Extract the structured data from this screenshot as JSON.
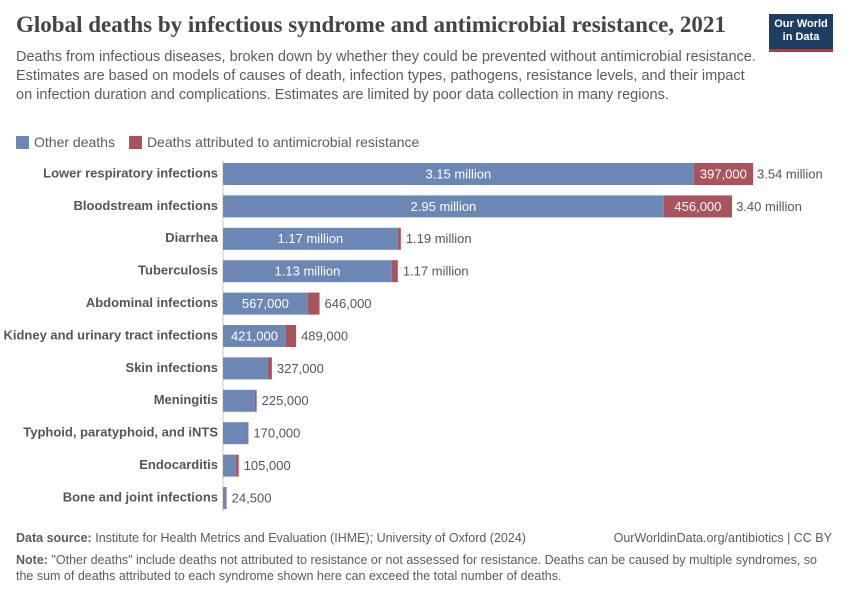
{
  "chart_data": {
    "type": "stacked-bar-horizontal",
    "title": "Global deaths by infectious syndrome and antimicrobial resistance, 2021",
    "subtitle": "Deaths from infectious diseases, broken down by whether they could be prevented without antimicrobial resistance. Estimates are based on models of causes of death, infection types, pathogens, resistance levels, and their impact on infection duration and complications. Estimates are limited by poor data collection in many regions.",
    "logo": [
      "Our World",
      "in Data"
    ],
    "categories": [
      "Lower respiratory infections",
      "Bloodstream infections",
      "Diarrhea",
      "Tuberculosis",
      "Abdominal infections",
      "Kidney and urinary tract infections",
      "Skin infections",
      "Meningitis",
      "Typhoid, paratyphoid, and iNTS",
      "Endocarditis",
      "Bone and joint infections"
    ],
    "series": [
      {
        "name": "Other deaths",
        "color": "#6d87b4",
        "values": [
          3150000,
          2950000,
          1170000,
          1130000,
          567000,
          421000,
          300000,
          213000,
          162000,
          85000,
          22500
        ],
        "value_labels": [
          "3.15 million",
          "2.95 million",
          "1.17 million",
          "1.13 million",
          "567,000",
          "421,000",
          null,
          null,
          null,
          null,
          null
        ]
      },
      {
        "name": "Deaths attributed to antimicrobial resistance",
        "color": "#a8545d",
        "values": [
          397000,
          456000,
          20000,
          40000,
          79000,
          68000,
          27000,
          12000,
          8000,
          20000,
          2000
        ],
        "value_labels": [
          "397,000",
          "456,000",
          null,
          null,
          null,
          null,
          null,
          null,
          null,
          null,
          null
        ]
      }
    ],
    "totals": {
      "values": [
        3540000,
        3400000,
        1190000,
        1170000,
        646000,
        489000,
        327000,
        225000,
        170000,
        105000,
        24500
      ],
      "value_labels": [
        "3.54 million",
        "3.40 million",
        "1.19 million",
        "1.17 million",
        "646,000",
        "489,000",
        "327,000",
        "225,000",
        "170,000",
        "105,000",
        "24,500"
      ]
    },
    "source_label": "Data source:",
    "source": "Institute for Health Metrics and Evaluation (IHME); University of Oxford (2024)",
    "url": "OurWorldinData.org/antibiotics | CC BY",
    "note_label": "Note:",
    "note": "\"Other deaths\" include deaths not attributed to resistance or not assessed for resistance. Deaths can be caused by multiple syndromes, so the sum of deaths attributed to each syndrome shown here can exceed the total number of deaths."
  }
}
